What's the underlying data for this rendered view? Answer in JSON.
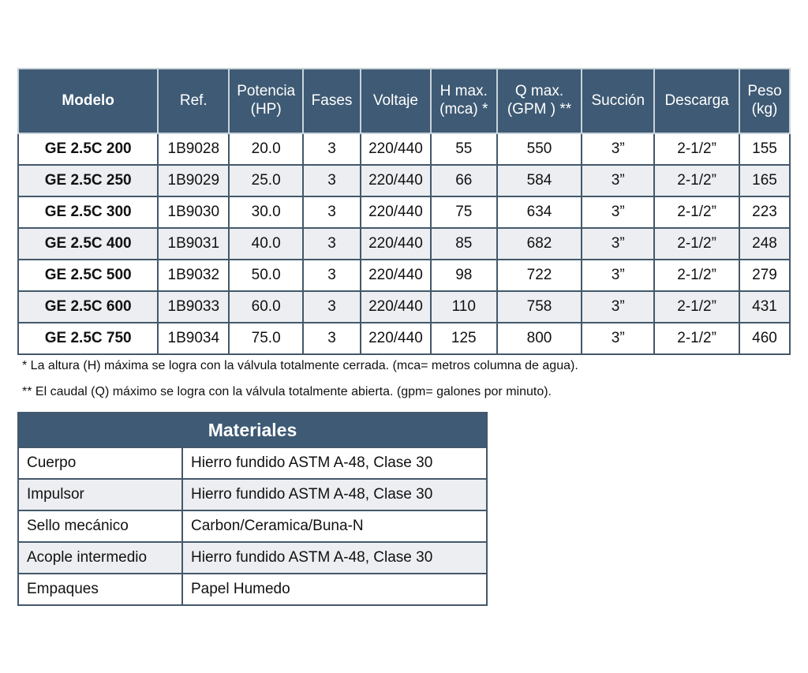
{
  "specs": {
    "headers": [
      [
        "Modelo"
      ],
      [
        "Ref."
      ],
      [
        "Potencia",
        "(HP)"
      ],
      [
        "Fases"
      ],
      [
        "Voltaje"
      ],
      [
        "H max.",
        "(mca) *"
      ],
      [
        "Q max.",
        "(GPM ) **"
      ],
      [
        "Succión"
      ],
      [
        "Descarga"
      ],
      [
        "Peso",
        "(kg)"
      ]
    ],
    "rows": [
      [
        "GE 2.5C 200",
        "1B9028",
        "20.0",
        "3",
        "220/440",
        "55",
        "550",
        "3”",
        "2-1/2”",
        "155"
      ],
      [
        "GE 2.5C 250",
        "1B9029",
        "25.0",
        "3",
        "220/440",
        "66",
        "584",
        "3”",
        "2-1/2”",
        "165"
      ],
      [
        "GE 2.5C 300",
        "1B9030",
        "30.0",
        "3",
        "220/440",
        "75",
        "634",
        "3”",
        "2-1/2”",
        "223"
      ],
      [
        "GE 2.5C 400",
        "1B9031",
        "40.0",
        "3",
        "220/440",
        "85",
        "682",
        "3”",
        "2-1/2”",
        "248"
      ],
      [
        "GE 2.5C 500",
        "1B9032",
        "50.0",
        "3",
        "220/440",
        "98",
        "722",
        "3”",
        "2-1/2”",
        "279"
      ],
      [
        "GE 2.5C 600",
        "1B9033",
        "60.0",
        "3",
        "220/440",
        "110",
        "758",
        "3”",
        "2-1/2”",
        "431"
      ],
      [
        "GE 2.5C 750",
        "1B9034",
        "75.0",
        "3",
        "220/440",
        "125",
        "800",
        "3”",
        "2-1/2”",
        "460"
      ]
    ]
  },
  "notes": [
    "* La altura (H) máxima se logra con la válvula totalmente cerrada. (mca= metros columna de agua).",
    "** El caudal (Q) máximo se logra con la válvula totalmente abierta. (gpm= galones por minuto)."
  ],
  "materials": {
    "title": "Materiales",
    "rows": [
      [
        "Cuerpo",
        "Hierro fundido  ASTM A-48, Clase 30"
      ],
      [
        "Impulsor",
        "Hierro fundido  ASTM A-48, Clase 30"
      ],
      [
        "Sello mecánico",
        "Carbon/Ceramica/Buna-N"
      ],
      [
        "Acople intermedio",
        "Hierro fundido  ASTM A-48, Clase 30"
      ],
      [
        "Empaques",
        "Papel Humedo"
      ]
    ]
  },
  "colors": {
    "header": "#3e5a74",
    "alt_row": "#eceef1"
  }
}
